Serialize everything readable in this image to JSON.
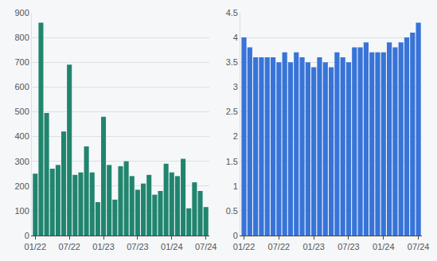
{
  "chart_data": [
    {
      "type": "bar",
      "categories": [
        "01/22",
        null,
        null,
        null,
        null,
        null,
        "07/22",
        null,
        null,
        null,
        null,
        null,
        "01/23",
        null,
        null,
        null,
        null,
        null,
        "07/23",
        null,
        null,
        null,
        null,
        null,
        "01/24",
        null,
        null,
        null,
        null,
        null,
        "07/24"
      ],
      "values": [
        250,
        860,
        495,
        270,
        285,
        420,
        690,
        245,
        255,
        360,
        255,
        135,
        480,
        285,
        145,
        280,
        300,
        240,
        185,
        210,
        245,
        165,
        180,
        290,
        255,
        240,
        310,
        110,
        215,
        180,
        115
      ],
      "color": "#21856e",
      "ylim": [
        0,
        900
      ],
      "yticks": [
        0,
        100,
        200,
        300,
        400,
        500,
        600,
        700,
        800,
        900
      ],
      "grid": true
    },
    {
      "type": "bar",
      "categories": [
        "01/22",
        null,
        null,
        null,
        null,
        null,
        "07/22",
        null,
        null,
        null,
        null,
        null,
        "01/23",
        null,
        null,
        null,
        null,
        null,
        "07/23",
        null,
        null,
        null,
        null,
        null,
        "01/24",
        null,
        null,
        null,
        null,
        null,
        "07/24"
      ],
      "values": [
        4.0,
        3.8,
        3.6,
        3.6,
        3.6,
        3.6,
        3.5,
        3.7,
        3.5,
        3.7,
        3.6,
        3.5,
        3.4,
        3.6,
        3.5,
        3.4,
        3.7,
        3.6,
        3.5,
        3.8,
        3.8,
        3.9,
        3.7,
        3.7,
        3.7,
        3.9,
        3.8,
        3.9,
        4.0,
        4.1,
        4.3
      ],
      "color": "#3874d8",
      "ylim": [
        0,
        4.5
      ],
      "yticks": [
        0,
        0.5,
        1,
        1.5,
        2,
        2.5,
        3,
        3.5,
        4,
        4.5
      ],
      "grid": true
    }
  ]
}
